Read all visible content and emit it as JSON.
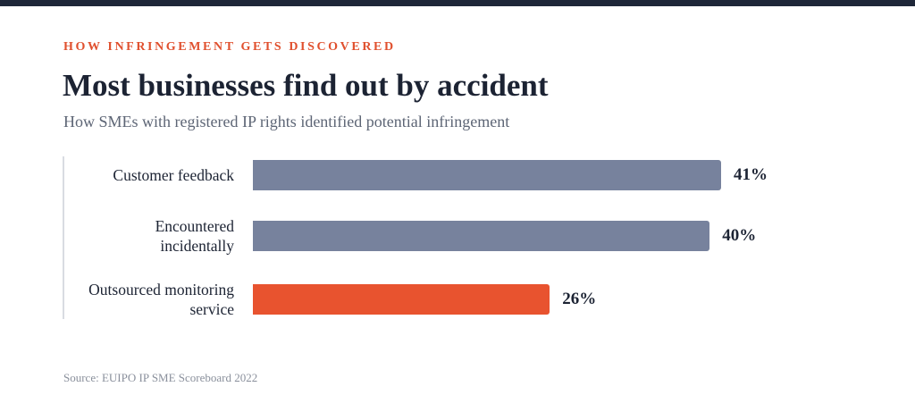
{
  "chart_data": {
    "type": "bar",
    "orientation": "horizontal",
    "eyebrow": "HOW INFRINGEMENT GETS DISCOVERED",
    "title": "Most businesses find out by accident",
    "subtitle": "How SMEs with registered IP rights identified potential infringement",
    "categories": [
      "Customer feedback",
      "Encountered\nincidentally",
      "Outsourced monitoring\nservice"
    ],
    "values": [
      41,
      40,
      26
    ],
    "value_labels": [
      "41%",
      "40%",
      "26%"
    ],
    "colors": [
      "#77829d",
      "#77829d",
      "#e8532f"
    ],
    "source": "Source: EUIPO IP SME Scoreboard 2022"
  }
}
